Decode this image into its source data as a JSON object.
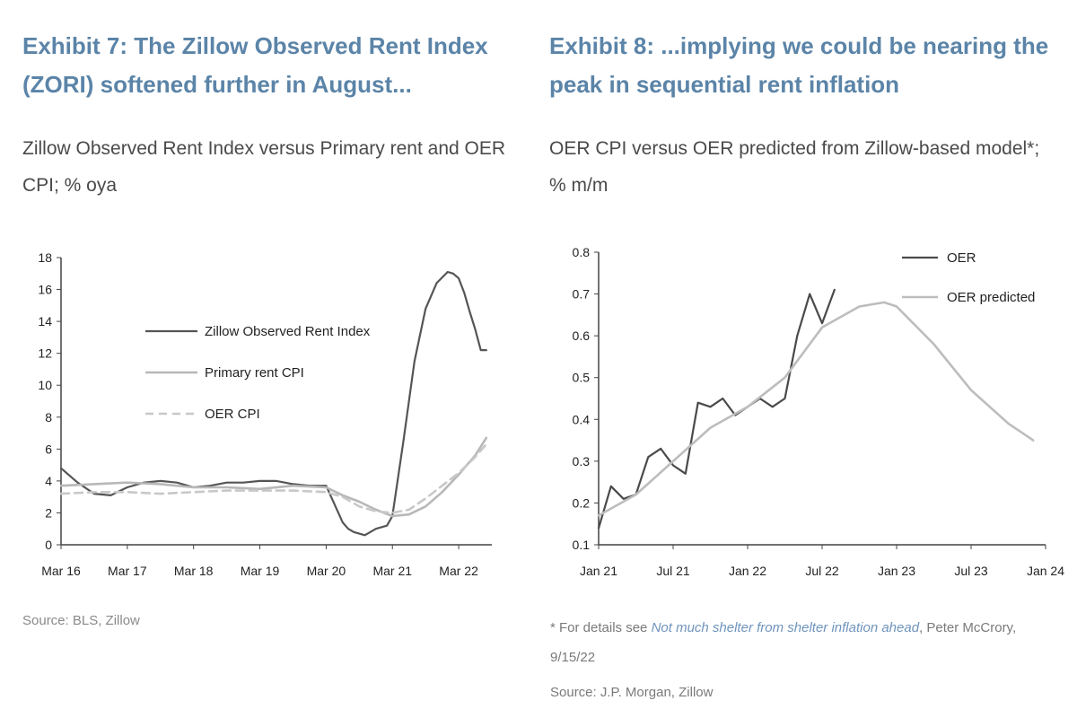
{
  "exhibit7": {
    "title": "Exhibit 7: The Zillow Observed Rent Index (ZORI) softened further in August...",
    "subtitle": "Zillow Observed Rent Index versus Primary rent and OER CPI; % oya",
    "source": "Source: BLS, Zillow"
  },
  "exhibit8": {
    "title": "Exhibit 8: ...implying we could be nearing the peak in sequential rent inflation",
    "subtitle": "OER CPI versus OER predicted from Zillow-based model*; % m/m",
    "footnote_prefix": "* For details see ",
    "footnote_link": "Not much shelter from shelter inflation ahead",
    "footnote_suffix": ", Peter McCrory, 9/15/22",
    "source": "Source: J.P. Morgan, Zillow"
  },
  "chart_data": [
    {
      "type": "line",
      "title": "",
      "xlabel": "",
      "ylabel": "",
      "x_ticks": [
        "Mar 16",
        "Mar 17",
        "Mar 18",
        "Mar 19",
        "Mar 20",
        "Mar 21",
        "Mar 22"
      ],
      "y_ticks": [
        "0",
        "2",
        "4",
        "6",
        "8",
        "10",
        "12",
        "14",
        "16",
        "18"
      ],
      "ylim": [
        0,
        18
      ],
      "legend_position": "center-left",
      "series": [
        {
          "name": "Zillow Observed Rent Index",
          "color": "#555555",
          "style": "solid",
          "x": [
            "2016-03",
            "2016-06",
            "2016-09",
            "2016-12",
            "2017-03",
            "2017-06",
            "2017-09",
            "2017-12",
            "2018-03",
            "2018-06",
            "2018-09",
            "2018-12",
            "2019-03",
            "2019-06",
            "2019-09",
            "2019-12",
            "2020-03",
            "2020-06",
            "2020-07",
            "2020-08",
            "2020-09",
            "2020-10",
            "2020-11",
            "2020-12",
            "2021-01",
            "2021-02",
            "2021-03",
            "2021-05",
            "2021-07",
            "2021-09",
            "2021-11",
            "2022-01",
            "2022-02",
            "2022-03",
            "2022-04",
            "2022-05",
            "2022-06",
            "2022-07",
            "2022-08"
          ],
          "values": [
            4.8,
            3.9,
            3.2,
            3.1,
            3.6,
            3.9,
            4.0,
            3.9,
            3.6,
            3.7,
            3.9,
            3.9,
            4.0,
            4.0,
            3.8,
            3.7,
            3.7,
            1.4,
            1.0,
            0.8,
            0.7,
            0.6,
            0.8,
            1.0,
            1.1,
            1.2,
            1.8,
            6.5,
            11.5,
            14.8,
            16.4,
            17.1,
            17.0,
            16.7,
            15.8,
            14.6,
            13.5,
            12.2,
            12.2
          ]
        },
        {
          "name": "Primary rent CPI",
          "color": "#b8b8b8",
          "style": "solid",
          "x": [
            "2016-03",
            "2016-09",
            "2017-03",
            "2017-09",
            "2018-03",
            "2018-09",
            "2019-03",
            "2019-09",
            "2020-03",
            "2020-06",
            "2020-09",
            "2020-12",
            "2021-03",
            "2021-06",
            "2021-09",
            "2021-12",
            "2022-03",
            "2022-06",
            "2022-08"
          ],
          "values": [
            3.7,
            3.8,
            3.9,
            3.8,
            3.6,
            3.6,
            3.5,
            3.7,
            3.6,
            3.1,
            2.7,
            2.2,
            1.8,
            1.9,
            2.4,
            3.3,
            4.4,
            5.6,
            6.7
          ]
        },
        {
          "name": "OER CPI",
          "color": "#c8c8c8",
          "style": "dashed",
          "x": [
            "2016-03",
            "2016-09",
            "2017-03",
            "2017-09",
            "2018-03",
            "2018-09",
            "2019-03",
            "2019-09",
            "2020-03",
            "2020-06",
            "2020-09",
            "2020-12",
            "2021-03",
            "2021-06",
            "2021-09",
            "2021-12",
            "2022-03",
            "2022-06",
            "2022-08"
          ],
          "values": [
            3.2,
            3.3,
            3.3,
            3.2,
            3.3,
            3.4,
            3.4,
            3.4,
            3.3,
            3.0,
            2.4,
            2.1,
            2.0,
            2.2,
            2.9,
            3.7,
            4.5,
            5.5,
            6.3
          ]
        }
      ]
    },
    {
      "type": "line",
      "title": "",
      "xlabel": "",
      "ylabel": "",
      "x_ticks": [
        "Jan 21",
        "Jul 21",
        "Jan 22",
        "Jul 22",
        "Jan 23",
        "Jul 23",
        "Jan 24"
      ],
      "y_ticks": [
        "0.1",
        "0.2",
        "0.3",
        "0.4",
        "0.5",
        "0.6",
        "0.7",
        "0.8"
      ],
      "ylim": [
        0.1,
        0.8
      ],
      "legend_position": "top-right",
      "series": [
        {
          "name": "OER",
          "color": "#4a4a4a",
          "style": "solid",
          "x": [
            "2021-01",
            "2021-02",
            "2021-03",
            "2021-04",
            "2021-05",
            "2021-06",
            "2021-07",
            "2021-08",
            "2021-09",
            "2021-10",
            "2021-11",
            "2021-12",
            "2022-01",
            "2022-02",
            "2022-03",
            "2022-04",
            "2022-05",
            "2022-06",
            "2022-07",
            "2022-08"
          ],
          "values": [
            0.14,
            0.24,
            0.21,
            0.22,
            0.31,
            0.33,
            0.29,
            0.27,
            0.44,
            0.43,
            0.45,
            0.41,
            0.43,
            0.45,
            0.43,
            0.45,
            0.6,
            0.7,
            0.63,
            0.71
          ]
        },
        {
          "name": "OER predicted",
          "color": "#bdbdbd",
          "style": "solid",
          "x": [
            "2021-01",
            "2021-04",
            "2021-07",
            "2021-10",
            "2022-01",
            "2022-04",
            "2022-07",
            "2022-10",
            "2022-12",
            "2023-01",
            "2023-04",
            "2023-07",
            "2023-10",
            "2023-12"
          ],
          "values": [
            0.17,
            0.22,
            0.3,
            0.38,
            0.43,
            0.5,
            0.62,
            0.67,
            0.68,
            0.67,
            0.58,
            0.47,
            0.39,
            0.35
          ]
        }
      ]
    }
  ]
}
